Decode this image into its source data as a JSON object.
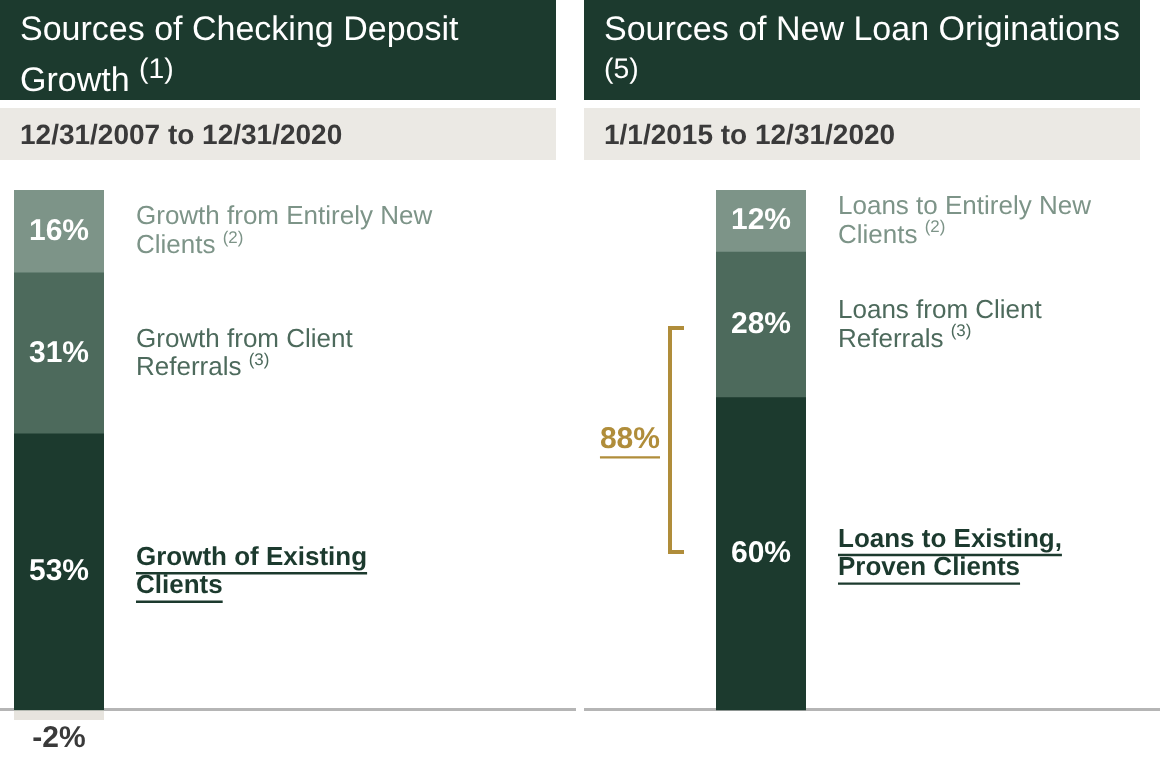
{
  "chart_data": [
    {
      "type": "bar",
      "title": "Sources of Checking Deposit Growth $^{(1)}$",
      "subtitle": "12/31/2007 to 12/31/2020",
      "categories": [
        null
      ],
      "stacked": true,
      "legend": false,
      "series": [
        {
          "name": "Growth of Existing Clients",
          "color": "#1c3a2e",
          "values": [
            53
          ],
          "value_labels": [
            "53%"
          ]
        },
        {
          "name": "Growth from Client Referrals $^{(3)}$",
          "color": "#4d6a5c",
          "values": [
            31
          ],
          "value_labels": [
            "31%"
          ]
        },
        {
          "name": "Growth from Entirely New Clients $^{(2)}$",
          "color": "#7d9488",
          "values": [
            16
          ],
          "value_labels": [
            "16%"
          ]
        },
        {
          "color": "#e7e4de",
          "values": [
            -2
          ],
          "value_labels": [
            "-2%"
          ]
        }
      ]
    },
    {
      "type": "bar",
      "title": "Sources of New Loan Originations $^{(5)}$",
      "subtitle": "1/1/2015 to 12/31/2020",
      "categories": [
        null
      ],
      "stacked": true,
      "legend": false,
      "annotations": [
        "88%"
      ],
      "series": [
        {
          "name": "Loans to Existing, Proven Clients",
          "color": "#1c3a2e",
          "values": [
            60
          ],
          "value_labels": [
            "60%"
          ]
        },
        {
          "name": "Loans from Client Referrals $^{(3)}$",
          "color": "#4d6a5c",
          "values": [
            28
          ],
          "value_labels": [
            "28%"
          ]
        },
        {
          "name": "Loans to Entirely New Clients $^{(2)}$",
          "color": "#7d9488",
          "values": [
            12
          ],
          "value_labels": [
            "12%"
          ]
        }
      ]
    }
  ]
}
